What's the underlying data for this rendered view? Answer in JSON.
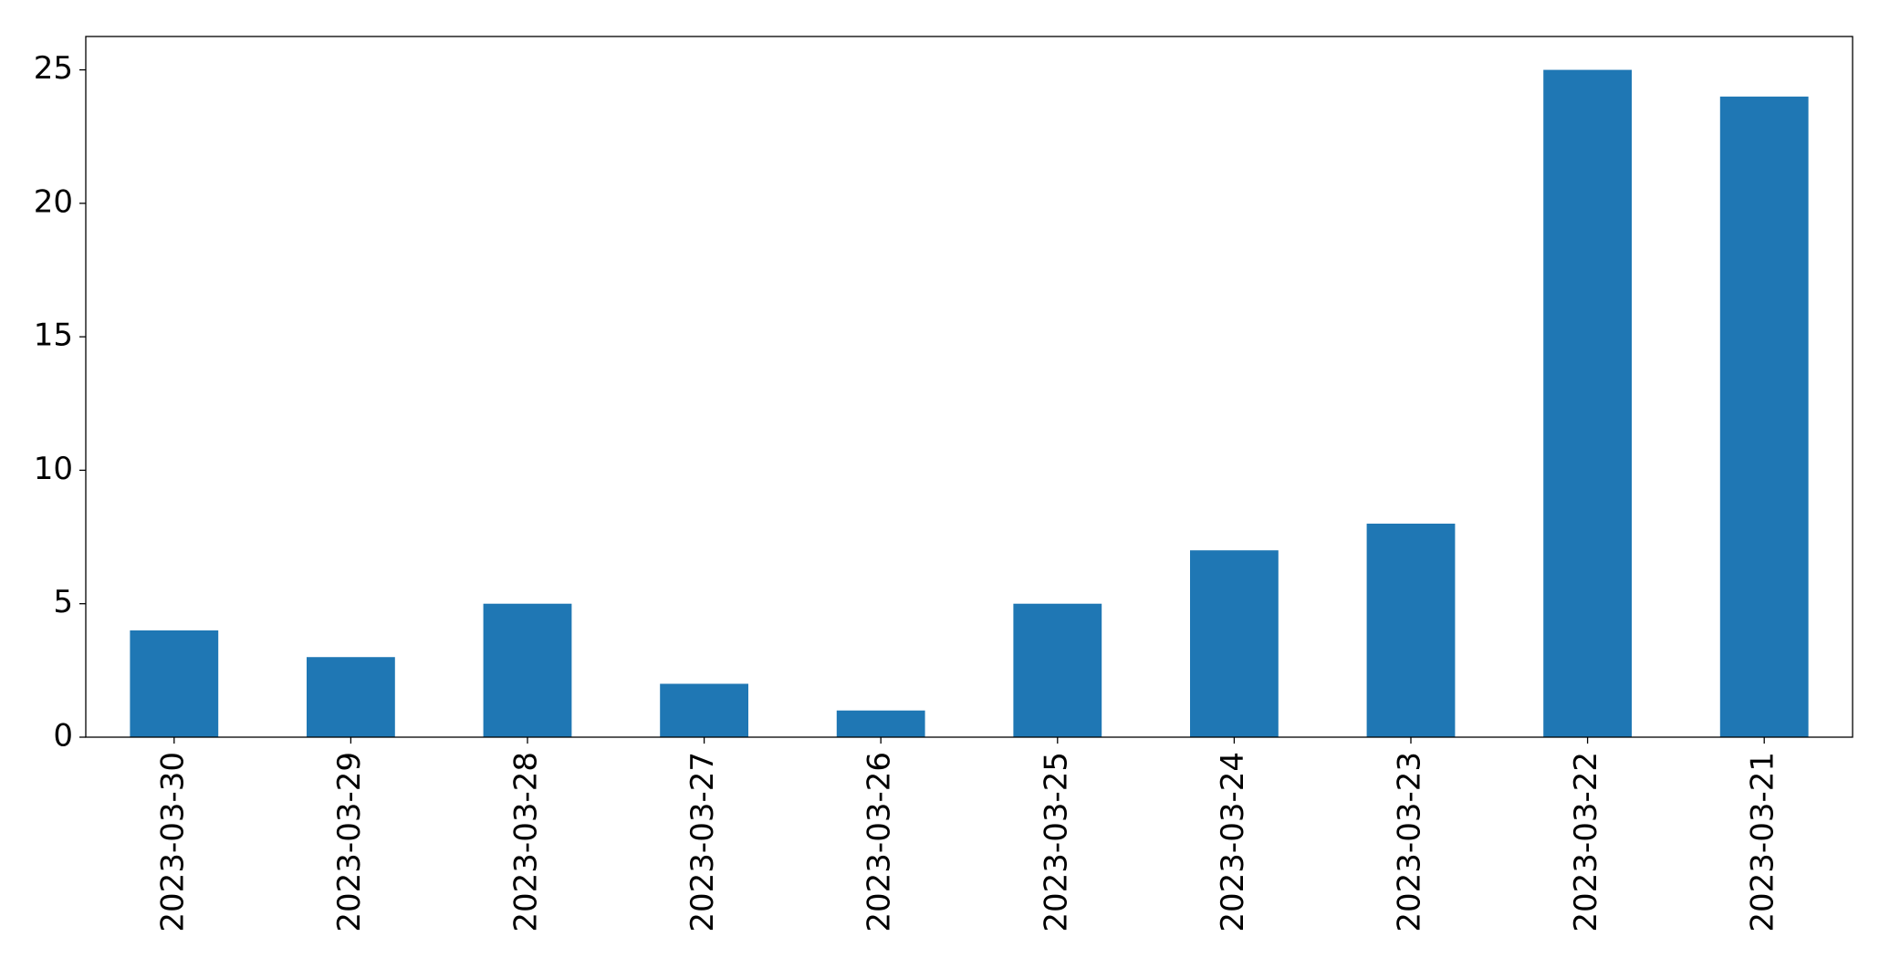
{
  "chart_data": {
    "type": "bar",
    "categories": [
      "2023-03-30",
      "2023-03-29",
      "2023-03-28",
      "2023-03-27",
      "2023-03-26",
      "2023-03-25",
      "2023-03-24",
      "2023-03-23",
      "2023-03-22",
      "2023-03-21"
    ],
    "values": [
      4,
      3,
      5,
      2,
      1,
      5,
      7,
      8,
      25,
      24
    ],
    "color": "#1f77b4",
    "ylim": [
      0,
      26.25
    ],
    "yticks": [
      0,
      5,
      10,
      15,
      20,
      25
    ],
    "grid": false
  }
}
